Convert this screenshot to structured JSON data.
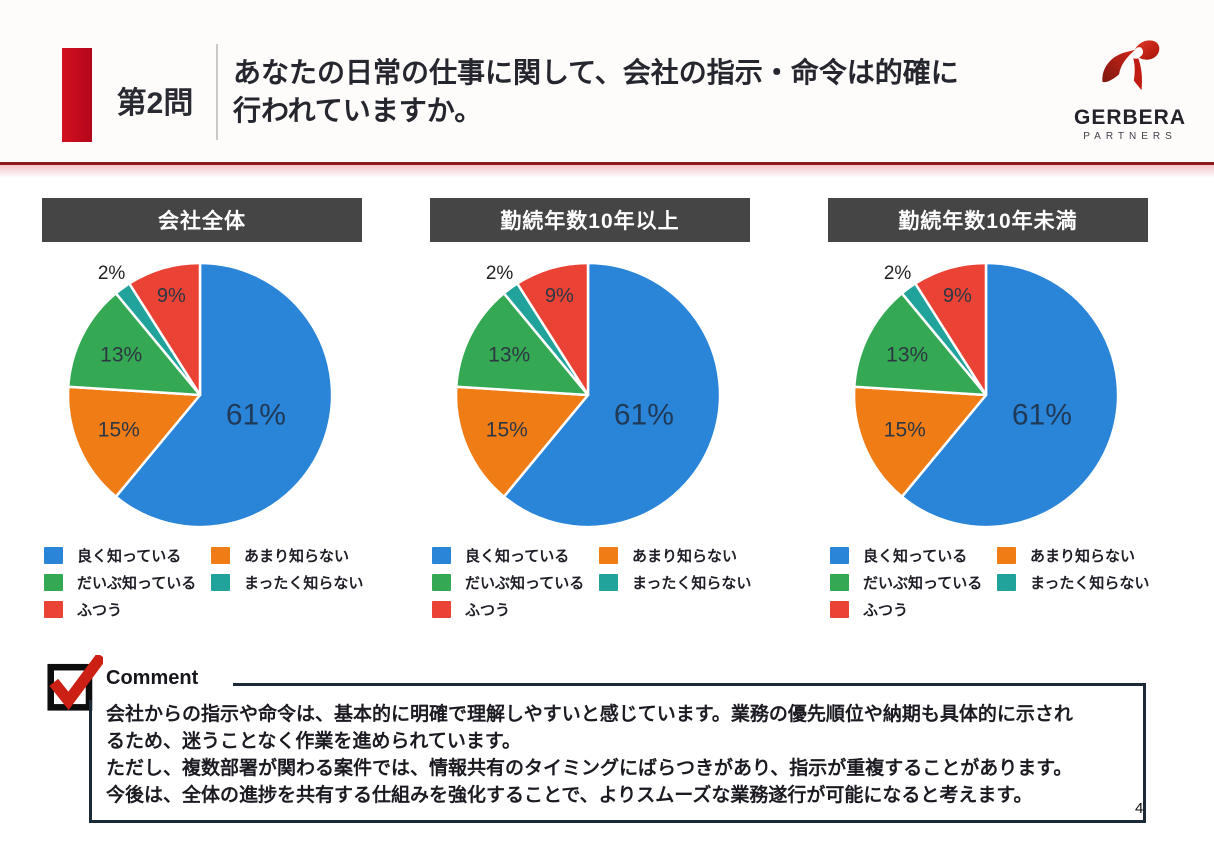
{
  "header": {
    "question_no": "第2問",
    "title_line1": "あなたの日常の仕事に関して、会社の指示・命令は的確に",
    "title_line2": "行われていますか。",
    "logo": {
      "name": "GERBERA",
      "sub": "PARTNERS"
    }
  },
  "colors": {
    "accent_red": "#c30d17",
    "header_rule": "#8e1a1d",
    "title_bar": "#454545",
    "blue": "#2a85d8",
    "orange": "#f07c16",
    "green": "#35a853",
    "teal": "#21a29b",
    "red": "#ea4335",
    "comment_border": "#1c2a38"
  },
  "chart_data": [
    {
      "type": "pie",
      "title": "会社全体",
      "unit": "%",
      "start_angle": "top",
      "direction": "clockwise",
      "slices": [
        {
          "name": "良く知っている",
          "value": 61,
          "label": "61%",
          "color": "#2a85d8",
          "label_r": 0.45,
          "label_size": 30,
          "label_color": "#1f3a58"
        },
        {
          "name": "あまり知らない",
          "value": 15,
          "label": "15%",
          "color": "#f07c16",
          "label_r": 0.67,
          "label_size": 21,
          "label_color": "#2d3743"
        },
        {
          "name": "だいぶ知っている",
          "value": 13,
          "label": "13%",
          "color": "#35a853",
          "label_r": 0.67,
          "label_size": 21,
          "label_color": "#2d3743"
        },
        {
          "name": "まったく知らない",
          "value": 2,
          "label": "2%",
          "color": "#21a29b",
          "label_r": 1.14,
          "label_size": 19,
          "label_color": "#222222"
        },
        {
          "name": "ふつう",
          "value": 9,
          "label": "9%",
          "color": "#ea4335",
          "label_r": 0.78,
          "label_size": 20,
          "label_color": "#2d3743"
        }
      ]
    },
    {
      "type": "pie",
      "title": "勤続年数10年以上",
      "unit": "%",
      "start_angle": "top",
      "direction": "clockwise",
      "slices": [
        {
          "name": "良く知っている",
          "value": 61,
          "label": "61%",
          "color": "#2a85d8",
          "label_r": 0.45,
          "label_size": 30,
          "label_color": "#1f3a58"
        },
        {
          "name": "あまり知らない",
          "value": 15,
          "label": "15%",
          "color": "#f07c16",
          "label_r": 0.67,
          "label_size": 21,
          "label_color": "#2d3743"
        },
        {
          "name": "だいぶ知っている",
          "value": 13,
          "label": "13%",
          "color": "#35a853",
          "label_r": 0.67,
          "label_size": 21,
          "label_color": "#2d3743"
        },
        {
          "name": "まったく知らない",
          "value": 2,
          "label": "2%",
          "color": "#21a29b",
          "label_r": 1.14,
          "label_size": 19,
          "label_color": "#222222"
        },
        {
          "name": "ふつう",
          "value": 9,
          "label": "9%",
          "color": "#ea4335",
          "label_r": 0.78,
          "label_size": 20,
          "label_color": "#2d3743"
        }
      ]
    },
    {
      "type": "pie",
      "title": "勤続年数10年未満",
      "unit": "%",
      "start_angle": "top",
      "direction": "clockwise",
      "slices": [
        {
          "name": "良く知っている",
          "value": 61,
          "label": "61%",
          "color": "#2a85d8",
          "label_r": 0.45,
          "label_size": 30,
          "label_color": "#1f3a58"
        },
        {
          "name": "あまり知らない",
          "value": 15,
          "label": "15%",
          "color": "#f07c16",
          "label_r": 0.67,
          "label_size": 21,
          "label_color": "#2d3743"
        },
        {
          "name": "だいぶ知っている",
          "value": 13,
          "label": "13%",
          "color": "#35a853",
          "label_r": 0.67,
          "label_size": 21,
          "label_color": "#2d3743"
        },
        {
          "name": "まったく知らない",
          "value": 2,
          "label": "2%",
          "color": "#21a29b",
          "label_r": 1.14,
          "label_size": 19,
          "label_color": "#222222"
        },
        {
          "name": "ふつう",
          "value": 9,
          "label": "9%",
          "color": "#ea4335",
          "label_r": 0.78,
          "label_size": 20,
          "label_color": "#2d3743"
        }
      ]
    }
  ],
  "legend": {
    "columns": [
      [
        {
          "label": "良く知っている",
          "color": "#2a85d8"
        },
        {
          "label": "だいぶ知っている",
          "color": "#35a853"
        },
        {
          "label": "ふつう",
          "color": "#ea4335"
        }
      ],
      [
        {
          "label": "あまり知らない",
          "color": "#f07c16"
        },
        {
          "label": "まったく知らない",
          "color": "#21a29b"
        }
      ]
    ]
  },
  "comment": {
    "label": "Comment",
    "lines": [
      "会社からの指示や命令は、基本的に明確で理解しやすいと感じています。業務の優先順位や納期も具体的に示され",
      "るため、迷うことなく作業を進められています。",
      "ただし、複数部署が関わる案件では、情報共有のタイミングにばらつきがあり、指示が重複することがあります。",
      "今後は、全体の進捗を共有する仕組みを強化することで、よりスムーズな業務遂行が可能になると考えます。"
    ]
  },
  "page_number": "4"
}
